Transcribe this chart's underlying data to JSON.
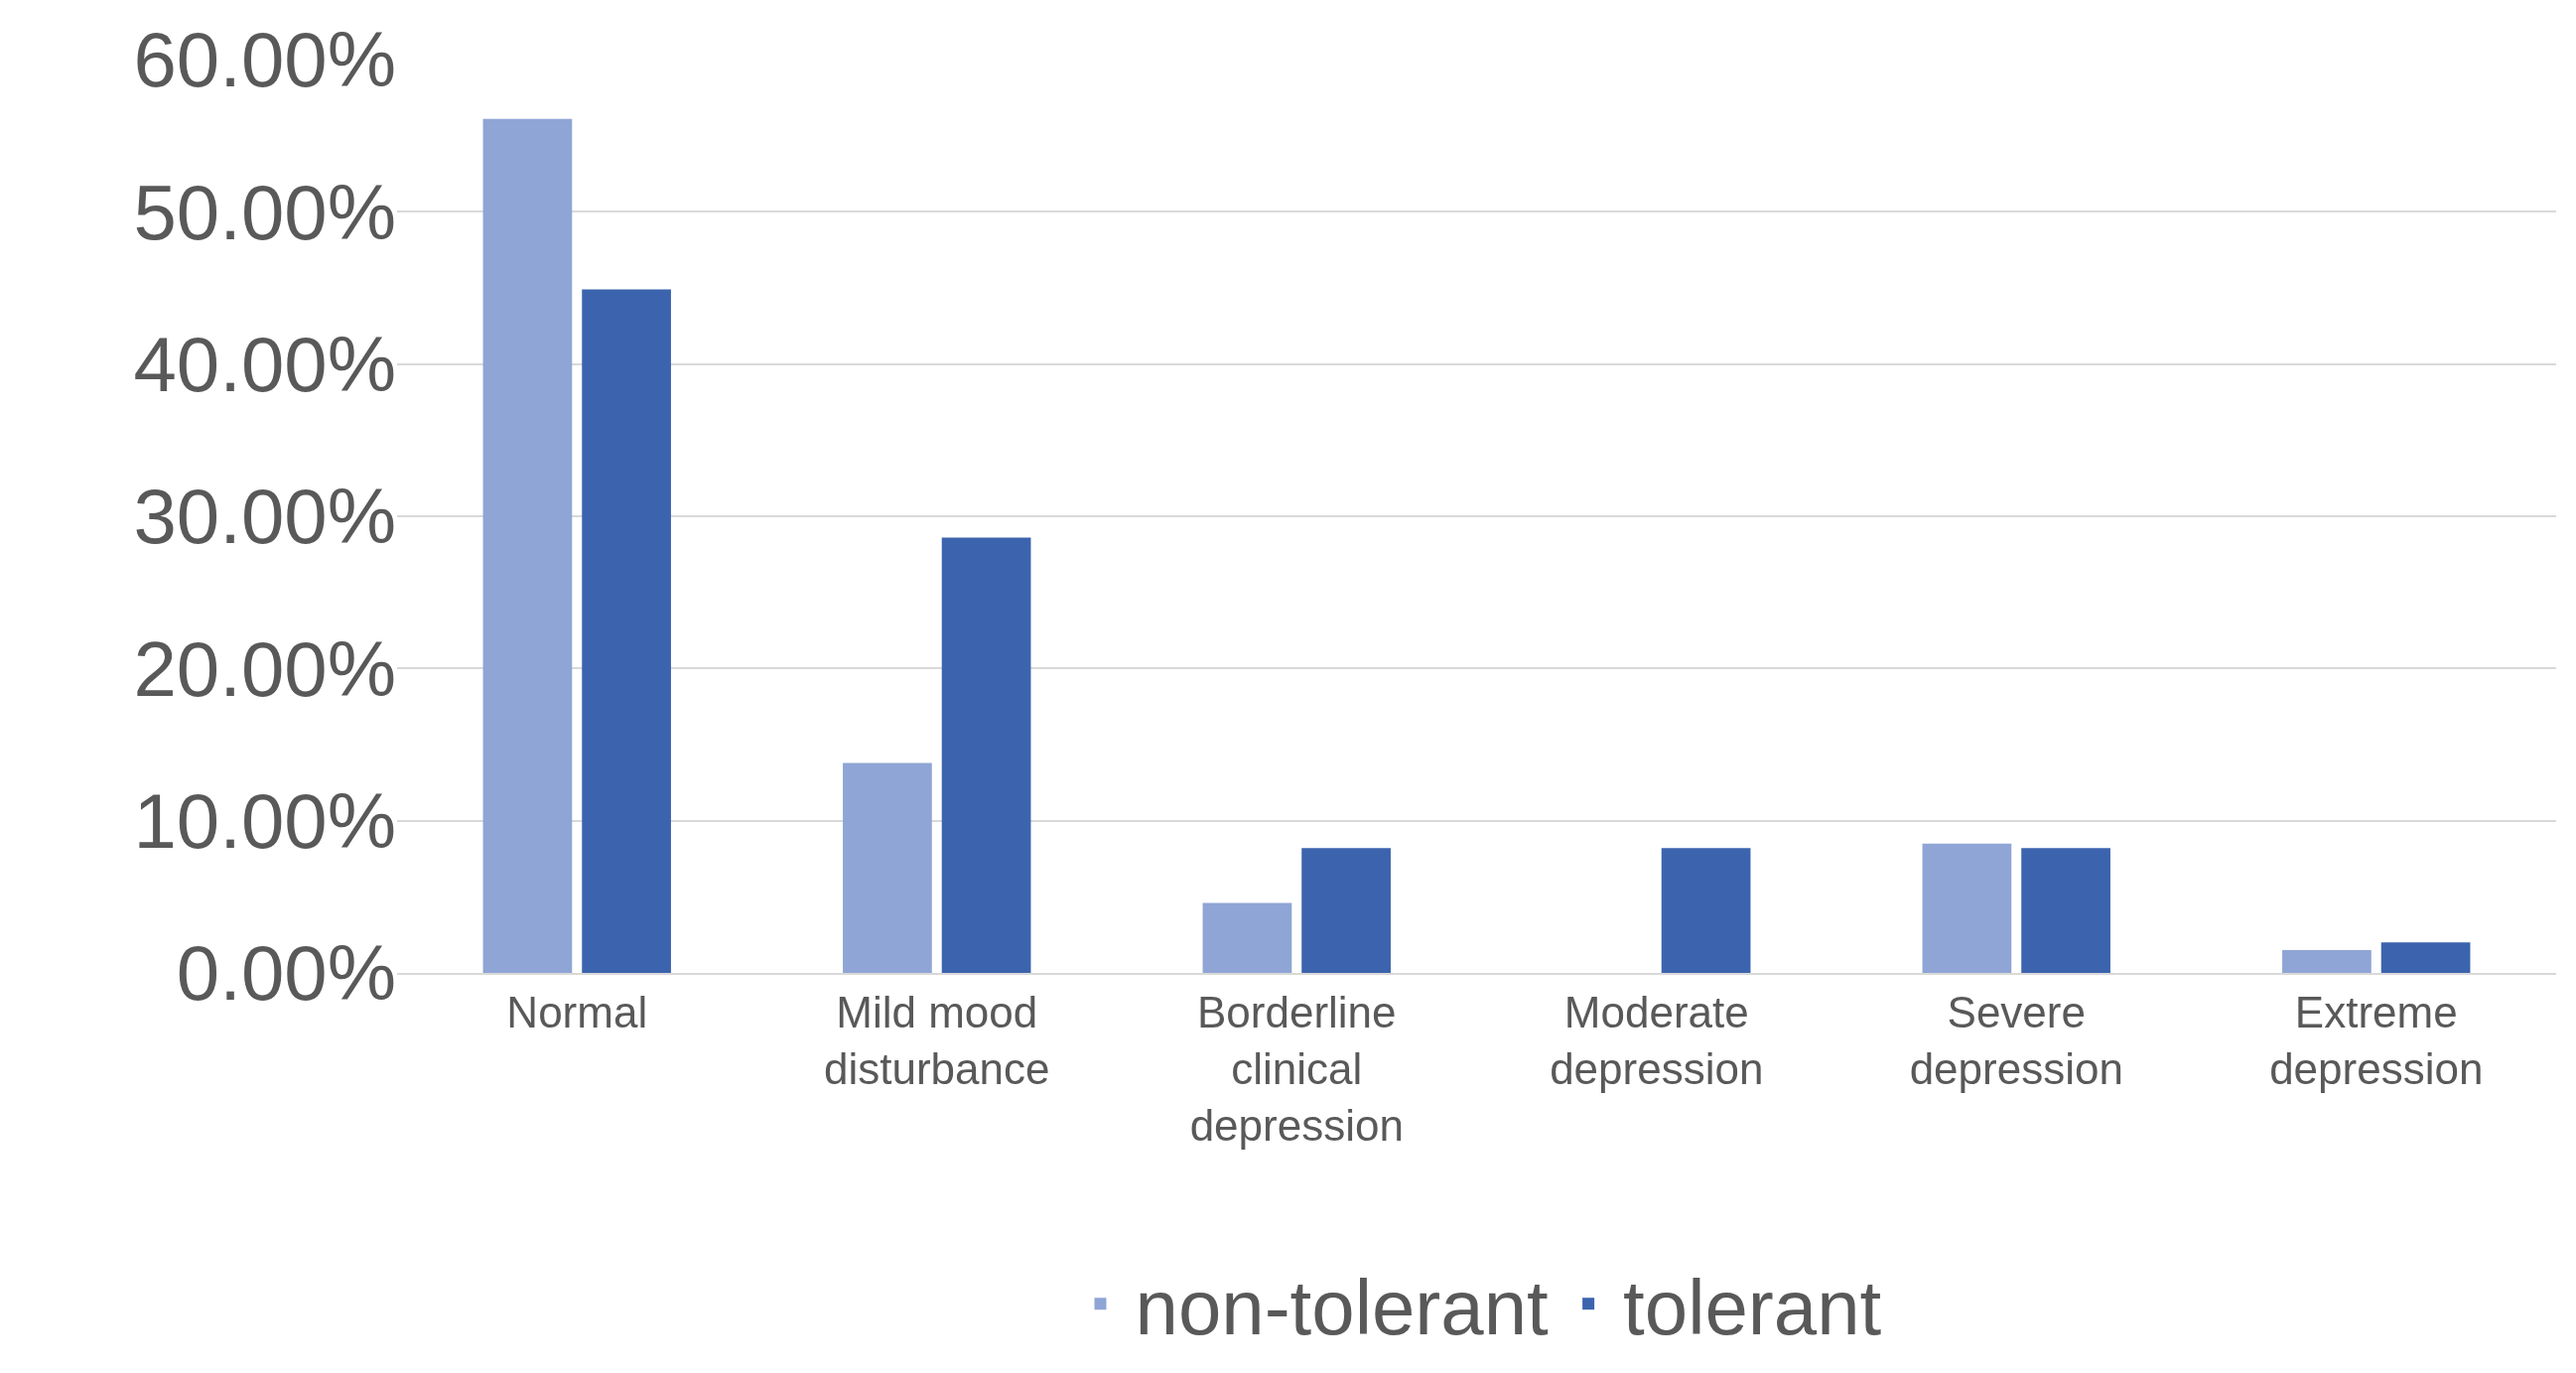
{
  "chart_data": {
    "type": "bar",
    "categories": [
      "Normal",
      "Mild mood disturbance",
      "Borderline clinical depression",
      "Moderate depression",
      "Severe depression",
      "Extreme depression"
    ],
    "series": [
      {
        "name": "non-tolerant",
        "color": "#8fa5d6",
        "values": [
          56.1,
          13.8,
          4.6,
          0,
          8.5,
          1.5
        ]
      },
      {
        "name": "tolerant",
        "color": "#3c64ae",
        "values": [
          44.9,
          28.6,
          8.2,
          8.2,
          8.2,
          2.0
        ]
      }
    ],
    "ylim": [
      0,
      60
    ],
    "yticks": [
      {
        "value": 0,
        "label": "0.00%"
      },
      {
        "value": 10,
        "label": "10.00%"
      },
      {
        "value": 20,
        "label": "20.00%"
      },
      {
        "value": 30,
        "label": "30.00%"
      },
      {
        "value": 40,
        "label": "40.00%"
      },
      {
        "value": 50,
        "label": "50.00%"
      },
      {
        "value": 60,
        "label": "60.00%"
      }
    ],
    "grid": "y",
    "legend": "bottom"
  }
}
